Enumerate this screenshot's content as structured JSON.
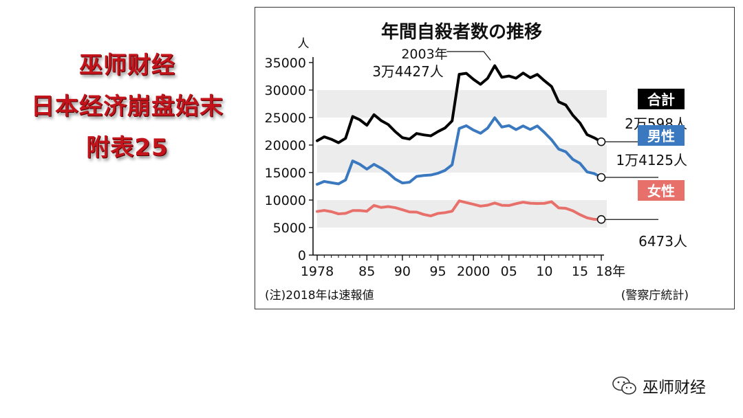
{
  "left_title": {
    "lines": [
      "巫师财经",
      "日本经济崩盘始末",
      "附表25"
    ]
  },
  "chart_data": {
    "type": "line",
    "title": "年間自殺者数の推移",
    "y_unit": "人",
    "ylim": [
      0,
      35000
    ],
    "yticks": [
      0,
      5000,
      10000,
      15000,
      20000,
      25000,
      30000,
      35000
    ],
    "y_tick_labels": [
      "0",
      "5000",
      "10000",
      "15000",
      "20000",
      "25000",
      "30000",
      "35000"
    ],
    "x_tick_values": [
      1978,
      1985,
      1990,
      1995,
      2000,
      2005,
      2010,
      2015,
      2018
    ],
    "x_tick_labels": [
      "1978",
      "85",
      "90",
      "95",
      "2000",
      "05",
      "10",
      "15",
      "18年"
    ],
    "grid": "alternating horizontal bands",
    "x": [
      1978,
      1979,
      1980,
      1981,
      1982,
      1983,
      1984,
      1985,
      1986,
      1987,
      1988,
      1989,
      1990,
      1991,
      1992,
      1993,
      1994,
      1995,
      1996,
      1997,
      1998,
      1999,
      2000,
      2001,
      2002,
      2003,
      2004,
      2005,
      2006,
      2007,
      2008,
      2009,
      2010,
      2011,
      2012,
      2013,
      2014,
      2015,
      2016,
      2017,
      2018
    ],
    "series": [
      {
        "name": "合計",
        "color": "#000000",
        "end_label": "2万598人",
        "values": [
          20788,
          21503,
          21048,
          20434,
          21228,
          25202,
          24596,
          23599,
          25524,
          24460,
          23742,
          22436,
          21346,
          21084,
          22104,
          21851,
          21679,
          22445,
          23104,
          24391,
          32863,
          33048,
          31957,
          31042,
          32143,
          34427,
          32325,
          32552,
          32155,
          33093,
          32249,
          32845,
          31690,
          30651,
          27858,
          27283,
          25427,
          24025,
          21897,
          21321,
          20598
        ]
      },
      {
        "name": "男性",
        "color": "#3a78c0",
        "end_label": "1万4125人",
        "values": [
          12859,
          13386,
          13155,
          12942,
          13654,
          17116,
          16508,
          15624,
          16497,
          15802,
          14934,
          13818,
          13102,
          13242,
          14296,
          14468,
          14560,
          14874,
          15393,
          16416,
          23013,
          23512,
          22727,
          22144,
          23080,
          24963,
          23272,
          23540,
          22813,
          23478,
          22831,
          23472,
          22283,
          20955,
          19273,
          18787,
          17386,
          16681,
          15121,
          14826,
          14125
        ]
      },
      {
        "name": "女性",
        "color": "#e8706b",
        "end_label": "6473人",
        "values": [
          7929,
          8117,
          7893,
          7492,
          7574,
          8086,
          8088,
          7975,
          9027,
          8658,
          8808,
          8618,
          8244,
          7842,
          7808,
          7383,
          7119,
          7571,
          7711,
          7975,
          9850,
          9536,
          9230,
          8898,
          9063,
          9464,
          9053,
          9012,
          9342,
          9615,
          9418,
          9373,
          9407,
          9696,
          8585,
          8496,
          8041,
          7344,
          6776,
          6495,
          6473
        ]
      }
    ],
    "annotation": {
      "x": 2003,
      "y": 34427,
      "year_text": "2003年",
      "value_text": "3万4427人"
    },
    "note": "(注)2018年は速報値",
    "source": "(警察庁統計)"
  },
  "watermark": {
    "text": "巫师财经",
    "icon": "wechat-icon"
  }
}
